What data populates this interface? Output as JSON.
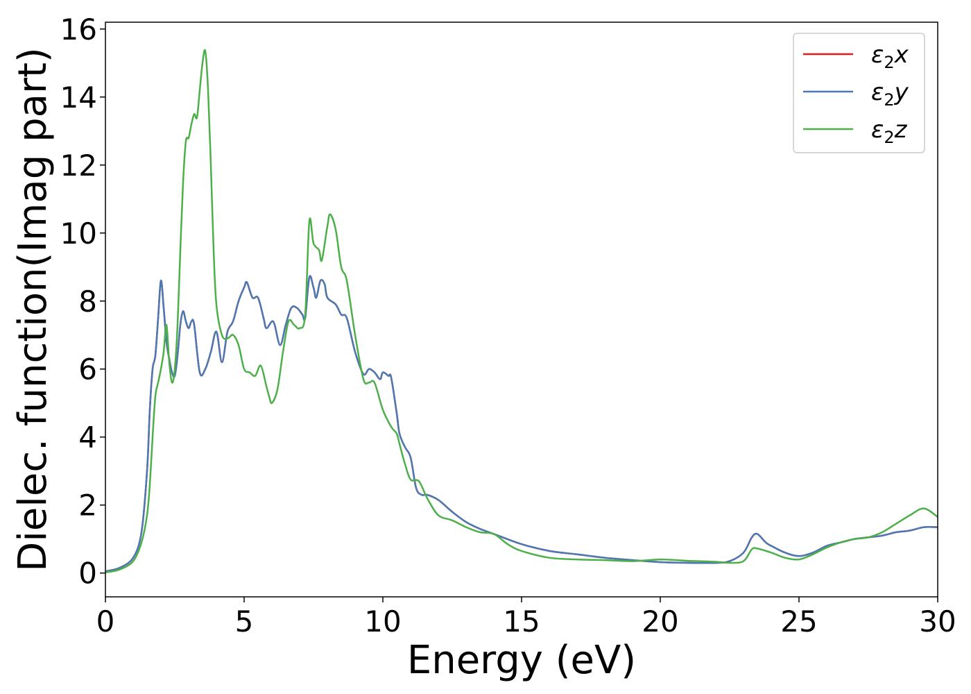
{
  "chart_data": {
    "type": "line",
    "xlabel": "Energy (eV)",
    "ylabel": "Dielec. function(Imag part)",
    "xlim": [
      0,
      30
    ],
    "ylim": [
      -0.7,
      16.2
    ],
    "xticks": [
      0,
      5,
      10,
      15,
      20,
      25,
      30
    ],
    "yticks": [
      0,
      2,
      4,
      6,
      8,
      10,
      12,
      14,
      16
    ],
    "xtick_labels": [
      "0",
      "5",
      "10",
      "15",
      "20",
      "25",
      "30"
    ],
    "ytick_labels": [
      "0",
      "2",
      "4",
      "6",
      "8",
      "10",
      "12",
      "14",
      "16"
    ],
    "grid": false,
    "legend_position": "top-right",
    "series": [
      {
        "name": "ε2x",
        "legend": {
          "base": "ε",
          "sub": "2",
          "axis": "x"
        },
        "color": "#e41a1c",
        "x": [
          0,
          0.5,
          1.0,
          1.3,
          1.5,
          1.6,
          1.7,
          1.8,
          1.9,
          2.0,
          2.1,
          2.2,
          2.3,
          2.4,
          2.5,
          2.6,
          2.7,
          2.8,
          2.9,
          3.0,
          3.1,
          3.2,
          3.4,
          3.6,
          3.8,
          4.0,
          4.2,
          4.4,
          4.6,
          4.8,
          5.0,
          5.1,
          5.3,
          5.5,
          5.7,
          5.8,
          6.0,
          6.1,
          6.3,
          6.5,
          6.7,
          6.9,
          7.1,
          7.2,
          7.35,
          7.5,
          7.6,
          7.75,
          7.9,
          8.0,
          8.3,
          8.5,
          8.7,
          9.0,
          9.3,
          9.5,
          9.7,
          9.9,
          10.0,
          10.2,
          10.3,
          10.5,
          10.6,
          10.8,
          11.0,
          11.2,
          11.4,
          11.6,
          12.0,
          12.5,
          13.0,
          13.5,
          14.0,
          15.0,
          16.0,
          17.0,
          18.0,
          19.0,
          20.0,
          21.0,
          22.0,
          22.5,
          23.0,
          23.3,
          23.5,
          23.8,
          24.0,
          24.5,
          25.0,
          25.5,
          26.0,
          26.5,
          27.0,
          27.5,
          28.0,
          28.5,
          29.0,
          29.5,
          30.0
        ],
        "y": [
          0.05,
          0.15,
          0.45,
          1.2,
          3.0,
          4.8,
          6.0,
          6.4,
          7.5,
          8.6,
          7.8,
          6.8,
          6.3,
          5.9,
          5.8,
          6.4,
          7.3,
          7.7,
          7.4,
          7.2,
          7.4,
          7.3,
          5.9,
          6.0,
          6.5,
          7.1,
          6.2,
          7.1,
          7.4,
          8.0,
          8.4,
          8.55,
          8.1,
          8.1,
          7.5,
          7.2,
          7.4,
          7.3,
          6.7,
          7.3,
          7.8,
          7.8,
          7.6,
          7.5,
          8.7,
          8.4,
          8.1,
          8.6,
          8.5,
          8.1,
          7.9,
          7.6,
          7.5,
          6.5,
          5.85,
          6.0,
          5.9,
          5.7,
          5.9,
          5.8,
          5.75,
          4.7,
          4.1,
          3.7,
          3.4,
          2.5,
          2.3,
          2.3,
          2.15,
          1.8,
          1.5,
          1.3,
          1.15,
          0.85,
          0.65,
          0.55,
          0.45,
          0.38,
          0.32,
          0.3,
          0.3,
          0.35,
          0.6,
          1.05,
          1.15,
          0.9,
          0.8,
          0.6,
          0.5,
          0.6,
          0.8,
          0.9,
          1.0,
          1.05,
          1.1,
          1.2,
          1.25,
          1.35,
          1.35
        ]
      },
      {
        "name": "ε2y",
        "legend": {
          "base": "ε",
          "sub": "2",
          "axis": "y"
        },
        "color": "#4a7ab5",
        "x": [
          0,
          0.5,
          1.0,
          1.3,
          1.5,
          1.6,
          1.7,
          1.8,
          1.9,
          2.0,
          2.1,
          2.2,
          2.3,
          2.4,
          2.5,
          2.6,
          2.7,
          2.8,
          2.9,
          3.0,
          3.1,
          3.2,
          3.4,
          3.6,
          3.8,
          4.0,
          4.2,
          4.4,
          4.6,
          4.8,
          5.0,
          5.1,
          5.3,
          5.5,
          5.7,
          5.8,
          6.0,
          6.1,
          6.3,
          6.5,
          6.7,
          6.9,
          7.1,
          7.2,
          7.35,
          7.5,
          7.6,
          7.75,
          7.9,
          8.0,
          8.3,
          8.5,
          8.7,
          9.0,
          9.3,
          9.5,
          9.7,
          9.9,
          10.0,
          10.2,
          10.3,
          10.5,
          10.6,
          10.8,
          11.0,
          11.2,
          11.4,
          11.6,
          12.0,
          12.5,
          13.0,
          13.5,
          14.0,
          15.0,
          16.0,
          17.0,
          18.0,
          19.0,
          20.0,
          21.0,
          22.0,
          22.5,
          23.0,
          23.3,
          23.5,
          23.8,
          24.0,
          24.5,
          25.0,
          25.5,
          26.0,
          26.5,
          27.0,
          27.5,
          28.0,
          28.5,
          29.0,
          29.5,
          30.0
        ],
        "y": [
          0.05,
          0.15,
          0.45,
          1.2,
          3.0,
          4.8,
          6.0,
          6.4,
          7.5,
          8.6,
          7.8,
          6.8,
          6.3,
          5.9,
          5.8,
          6.4,
          7.3,
          7.7,
          7.4,
          7.2,
          7.4,
          7.3,
          5.9,
          6.0,
          6.5,
          7.1,
          6.2,
          7.1,
          7.4,
          8.0,
          8.4,
          8.55,
          8.1,
          8.1,
          7.5,
          7.2,
          7.4,
          7.3,
          6.7,
          7.3,
          7.8,
          7.8,
          7.6,
          7.5,
          8.7,
          8.4,
          8.1,
          8.6,
          8.5,
          8.1,
          7.9,
          7.6,
          7.5,
          6.5,
          5.85,
          6.0,
          5.9,
          5.7,
          5.9,
          5.8,
          5.75,
          4.7,
          4.1,
          3.7,
          3.4,
          2.5,
          2.3,
          2.3,
          2.15,
          1.8,
          1.5,
          1.3,
          1.15,
          0.85,
          0.65,
          0.55,
          0.45,
          0.38,
          0.32,
          0.3,
          0.3,
          0.35,
          0.6,
          1.05,
          1.15,
          0.9,
          0.8,
          0.6,
          0.5,
          0.6,
          0.8,
          0.9,
          1.0,
          1.05,
          1.1,
          1.2,
          1.25,
          1.35,
          1.35
        ]
      },
      {
        "name": "ε2z",
        "legend": {
          "base": "ε",
          "sub": "2",
          "axis": "z"
        },
        "color": "#4daf4a",
        "x": [
          0,
          0.5,
          1.0,
          1.3,
          1.5,
          1.6,
          1.7,
          1.8,
          1.9,
          2.0,
          2.1,
          2.2,
          2.3,
          2.4,
          2.5,
          2.6,
          2.7,
          2.8,
          2.9,
          3.0,
          3.1,
          3.2,
          3.3,
          3.4,
          3.5,
          3.6,
          3.7,
          3.8,
          3.9,
          4.0,
          4.2,
          4.4,
          4.6,
          4.8,
          5.0,
          5.2,
          5.4,
          5.6,
          5.8,
          5.9,
          6.0,
          6.2,
          6.4,
          6.6,
          6.8,
          7.0,
          7.2,
          7.35,
          7.5,
          7.7,
          7.8,
          8.0,
          8.1,
          8.3,
          8.5,
          8.7,
          9.0,
          9.3,
          9.5,
          9.7,
          10.0,
          10.3,
          10.5,
          10.6,
          10.8,
          11.0,
          11.3,
          11.6,
          12.0,
          12.5,
          13.0,
          13.5,
          14.0,
          14.5,
          15.0,
          16.0,
          17.0,
          18.0,
          19.0,
          20.0,
          21.0,
          22.0,
          22.5,
          23.0,
          23.3,
          23.5,
          24.0,
          24.5,
          25.0,
          25.5,
          26.0,
          26.5,
          27.0,
          27.5,
          28.0,
          28.5,
          29.0,
          29.5,
          30.0
        ],
        "y": [
          0.02,
          0.1,
          0.35,
          0.9,
          1.7,
          2.6,
          4.0,
          5.2,
          5.6,
          6.0,
          6.5,
          7.3,
          6.2,
          5.6,
          6.0,
          7.3,
          9.5,
          11.5,
          12.7,
          12.8,
          13.2,
          13.5,
          13.4,
          14.2,
          15.0,
          15.35,
          14.2,
          12.0,
          9.5,
          7.9,
          7.0,
          6.9,
          7.0,
          6.7,
          6.0,
          5.9,
          5.8,
          6.1,
          5.5,
          5.2,
          5.0,
          5.4,
          6.5,
          7.4,
          7.3,
          7.2,
          7.6,
          10.35,
          9.7,
          9.5,
          9.2,
          10.2,
          10.55,
          10.1,
          9.0,
          8.6,
          7.0,
          5.7,
          5.6,
          5.6,
          4.8,
          4.3,
          4.1,
          3.8,
          3.2,
          2.75,
          2.7,
          2.2,
          1.7,
          1.55,
          1.35,
          1.2,
          1.15,
          0.85,
          0.65,
          0.45,
          0.4,
          0.38,
          0.35,
          0.4,
          0.36,
          0.33,
          0.3,
          0.35,
          0.7,
          0.72,
          0.6,
          0.45,
          0.4,
          0.55,
          0.75,
          0.9,
          1.0,
          1.05,
          1.2,
          1.45,
          1.7,
          1.9,
          1.65
        ]
      }
    ]
  }
}
